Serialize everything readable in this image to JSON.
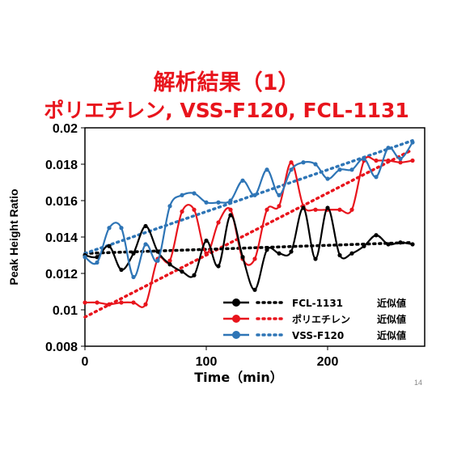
{
  "title": "解析結果（1）",
  "subtitle": "ポリエチレン, VSS-F120, FCL-1131",
  "page_number": "14",
  "chart_data": {
    "type": "line",
    "xlabel": "Time（min）",
    "ylabel": "Peak Height Ratio",
    "xlim": [
      0,
      280
    ],
    "ylim": [
      0.008,
      0.02
    ],
    "xticks": [
      "0",
      "100",
      "200"
    ],
    "xtick_values": [
      0,
      100,
      200
    ],
    "yticks": [
      "0.008",
      "0.01",
      "0.012",
      "0.014",
      "0.016",
      "0.018",
      "0.02"
    ],
    "ytick_values": [
      0.008,
      0.01,
      0.012,
      0.014,
      0.016,
      0.018,
      0.02
    ],
    "grid": false,
    "legend_position": "bottom-right",
    "trend_label": "近似値",
    "series": [
      {
        "name": "FCL-1131",
        "color": "#000000",
        "x": [
          0,
          10,
          20,
          30,
          40,
          50,
          60,
          70,
          80,
          90,
          100,
          110,
          120,
          130,
          140,
          150,
          160,
          170,
          180,
          190,
          200,
          210,
          220,
          230,
          240,
          250,
          260,
          270
        ],
        "y": [
          0.013,
          0.0129,
          0.0135,
          0.0122,
          0.0131,
          0.0146,
          0.0132,
          0.0125,
          0.0121,
          0.0119,
          0.0138,
          0.0124,
          0.0152,
          0.0129,
          0.0111,
          0.0133,
          0.0131,
          0.0132,
          0.0156,
          0.0128,
          0.0156,
          0.013,
          0.0131,
          0.0135,
          0.0141,
          0.0136,
          0.0137,
          0.0136
        ],
        "trend": [
          0.0131,
          0.0137
        ]
      },
      {
        "name": "ポリエチレン",
        "color": "#e8141c",
        "x": [
          0,
          10,
          20,
          30,
          40,
          50,
          60,
          70,
          80,
          90,
          100,
          110,
          120,
          130,
          140,
          150,
          160,
          170,
          180,
          190,
          200,
          210,
          220,
          230,
          240,
          250,
          260,
          270
        ],
        "y": [
          0.0104,
          0.0104,
          0.0103,
          0.0104,
          0.0104,
          0.0103,
          0.0128,
          0.0127,
          0.0154,
          0.0155,
          0.0131,
          0.0148,
          0.0155,
          0.0128,
          0.0128,
          0.0155,
          0.0157,
          0.0181,
          0.0157,
          0.0155,
          0.0155,
          0.0155,
          0.0155,
          0.0182,
          0.0182,
          0.0182,
          0.0181,
          0.0182
        ],
        "trend": [
          0.0096,
          0.0188
        ]
      },
      {
        "name": "VSS-F120",
        "color": "#2e75b6",
        "x": [
          0,
          10,
          20,
          30,
          40,
          50,
          60,
          70,
          80,
          90,
          100,
          110,
          120,
          130,
          140,
          150,
          160,
          170,
          180,
          190,
          200,
          210,
          220,
          230,
          240,
          250,
          260,
          270
        ],
        "y": [
          0.0129,
          0.0126,
          0.0145,
          0.0145,
          0.0118,
          0.0136,
          0.0127,
          0.0157,
          0.0163,
          0.0164,
          0.0159,
          0.0159,
          0.016,
          0.0171,
          0.0163,
          0.0177,
          0.0163,
          0.0177,
          0.0181,
          0.018,
          0.0172,
          0.0177,
          0.0177,
          0.0183,
          0.0173,
          0.0189,
          0.0183,
          0.0192
        ],
        "trend": [
          0.0131,
          0.0193
        ]
      }
    ]
  }
}
